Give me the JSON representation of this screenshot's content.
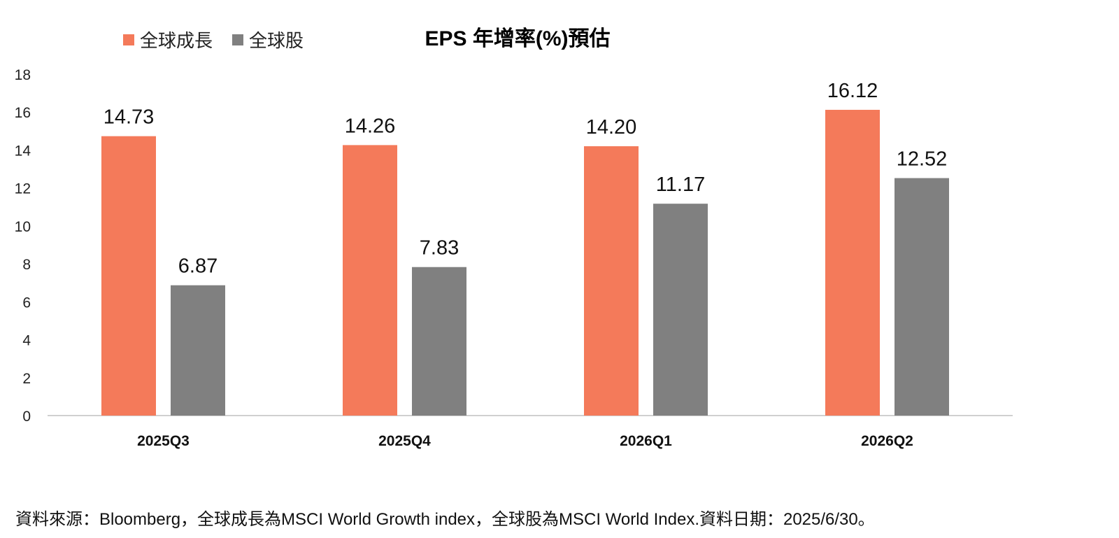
{
  "colors": {
    "series_1": "#F47A5A",
    "series_2": "#808080",
    "axis": "#d0d0d0"
  },
  "chart_data": {
    "type": "bar",
    "title": "EPS 年增率(%)預估",
    "xlabel": "",
    "ylabel": "",
    "categories": [
      "2025Q3",
      "2025Q4",
      "2026Q1",
      "2026Q2"
    ],
    "series": [
      {
        "name": "全球成長",
        "values": [
          14.73,
          14.26,
          14.2,
          16.12
        ]
      },
      {
        "name": "全球股",
        "values": [
          6.87,
          7.83,
          11.17,
          12.52
        ]
      }
    ],
    "data_labels": [
      [
        "14.73",
        "14.26",
        "14.20",
        "16.12"
      ],
      [
        "6.87",
        "7.83",
        "11.17",
        "12.52"
      ]
    ],
    "ylim": [
      0,
      18
    ],
    "yticks": [
      0,
      2,
      4,
      6,
      8,
      10,
      12,
      14,
      16,
      18
    ],
    "grid": false,
    "legend_position": "top-left"
  },
  "footer": {
    "source_note": "資料來源：Bloomberg，全球成長為MSCI World Growth index，全球股為MSCI World Index.資料日期：2025/6/30。"
  }
}
